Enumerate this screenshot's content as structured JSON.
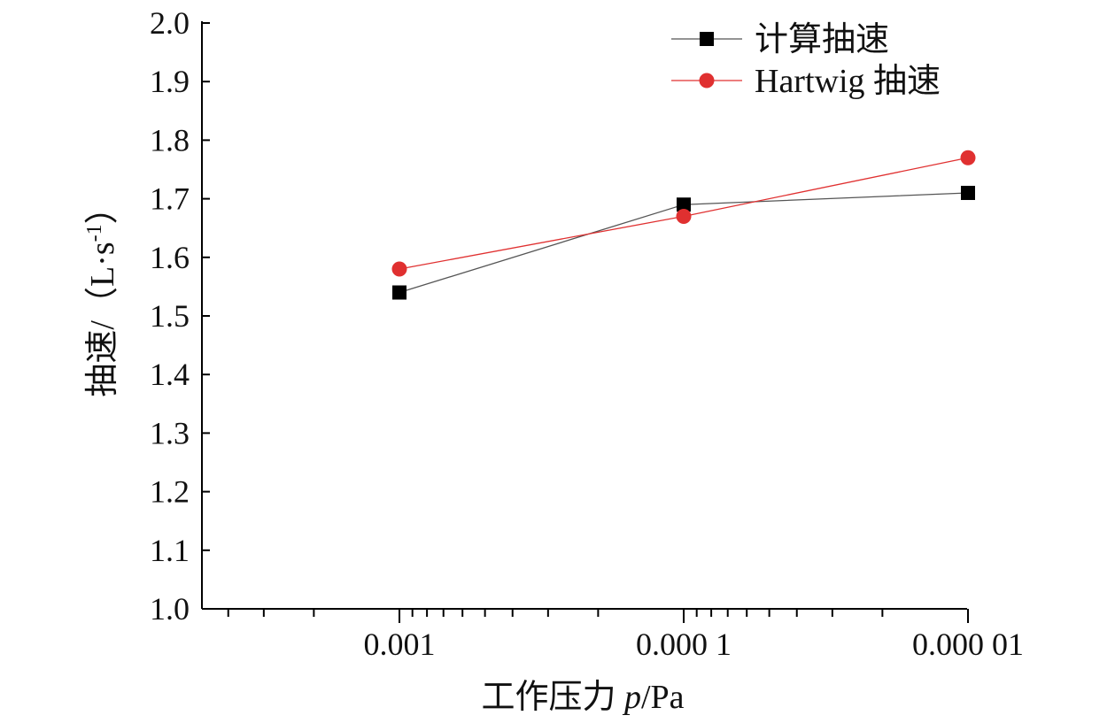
{
  "chart_data": {
    "type": "line",
    "title": "",
    "xlabel": "工作压力 p/Pa",
    "xlabel_prefix": "工作压力 ",
    "xlabel_var": "p",
    "xlabel_unit": "/Pa",
    "ylabel": "抽速/（L·s-1）",
    "ylabel_prefix": "抽速/（L·s",
    "ylabel_sup": "-1",
    "ylabel_suffix": "）",
    "x_scale": "log-reversed",
    "x": [
      0.001,
      0.0001,
      1e-05
    ],
    "x_tick_labels": [
      "0.001",
      "0.000 1",
      "0.000 01"
    ],
    "ylim": [
      1.0,
      2.0
    ],
    "y_ticks": [
      "1.0",
      "1.1",
      "1.2",
      "1.3",
      "1.4",
      "1.5",
      "1.6",
      "1.7",
      "1.8",
      "1.9",
      "2.0"
    ],
    "grid": false,
    "legend_position": "top-right",
    "series": [
      {
        "name": "计算抽速",
        "values": [
          1.54,
          1.69,
          1.71
        ],
        "color": "#000000",
        "marker": "square",
        "line_color": "#555555"
      },
      {
        "name": "Hartwig 抽速",
        "values": [
          1.58,
          1.67,
          1.77
        ],
        "color": "#e03030",
        "marker": "circle",
        "line_color": "#e03030"
      }
    ]
  }
}
